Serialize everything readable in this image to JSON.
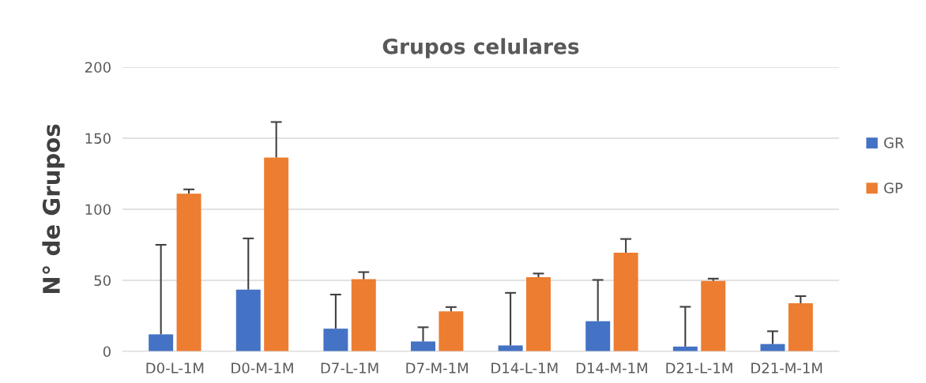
{
  "chart_data": {
    "type": "bar",
    "title": "Grupos celulares",
    "ylabel": "N° de Grupos",
    "categories": [
      "D0-L-1M",
      "D0-M-1M",
      "D7-L-1M",
      "D7-M-1M",
      "D14-L-1M",
      "D14-M-1M",
      "D21-L-1M",
      "D21-M-1M"
    ],
    "series": [
      {
        "name": "GR",
        "color": "#4472c4",
        "values": [
          12,
          43.5,
          16,
          7,
          4.2,
          21.3,
          3.4,
          5.2
        ],
        "errors": [
          [
            12,
            75
          ],
          [
            43.5,
            79.5
          ],
          [
            16,
            40
          ],
          [
            7,
            17
          ],
          [
            4.2,
            41.2
          ],
          [
            21.3,
            50.3
          ],
          [
            3.4,
            31.4
          ],
          [
            5.2,
            14.2
          ]
        ]
      },
      {
        "name": "GP",
        "color": "#ed7d31",
        "values": [
          111,
          136.4,
          50.8,
          28.2,
          52.2,
          69.5,
          49.6,
          33.9
        ],
        "errors": [
          [
            111,
            114
          ],
          [
            136.4,
            161.4
          ],
          [
            50.8,
            55.8
          ],
          [
            28.2,
            31.2
          ],
          [
            52.2,
            54.8
          ],
          [
            69.5,
            79.1
          ],
          [
            49.6,
            51.2
          ],
          [
            33.9,
            38.9
          ]
        ]
      }
    ],
    "ylim": [
      0,
      200
    ],
    "yticks": [
      0,
      50,
      100,
      150,
      200
    ],
    "grid": "y",
    "legend": "right"
  }
}
